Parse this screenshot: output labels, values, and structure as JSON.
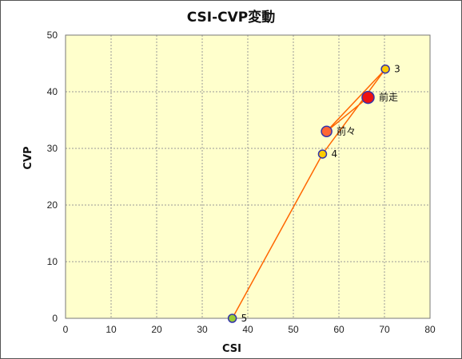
{
  "chart_data": {
    "type": "scatter",
    "title": "CSI-CVP変動",
    "xlabel": "CSI",
    "ylabel": "CVP",
    "xlim": [
      0,
      80
    ],
    "ylim": [
      0,
      50
    ],
    "xticks": [
      "0",
      "10",
      "20",
      "30",
      "40",
      "50",
      "60",
      "70",
      "80"
    ],
    "yticks": [
      "0",
      "10",
      "20",
      "30",
      "40",
      "50"
    ],
    "grid": true,
    "colors": {
      "plot_bg": "#ffffcc",
      "grid": "#999999",
      "line": "#ff6600",
      "point_border": "#3333aa"
    },
    "path_order": [
      "前走",
      "前々",
      "3",
      "4",
      "5"
    ],
    "points": [
      {
        "label": "3",
        "x": 70.2,
        "y": 44,
        "color": "#ffcc00",
        "size": "small"
      },
      {
        "label": "前走",
        "x": 66.4,
        "y": 39,
        "color": "#ee1111",
        "size": "large"
      },
      {
        "label": "前々",
        "x": 57.3,
        "y": 33,
        "color": "#ff6633",
        "size": "medium"
      },
      {
        "label": "4",
        "x": 56.4,
        "y": 29,
        "color": "#ffcc00",
        "size": "small"
      },
      {
        "label": "5",
        "x": 36.6,
        "y": 0,
        "color": "#99cc33",
        "size": "small"
      }
    ]
  }
}
